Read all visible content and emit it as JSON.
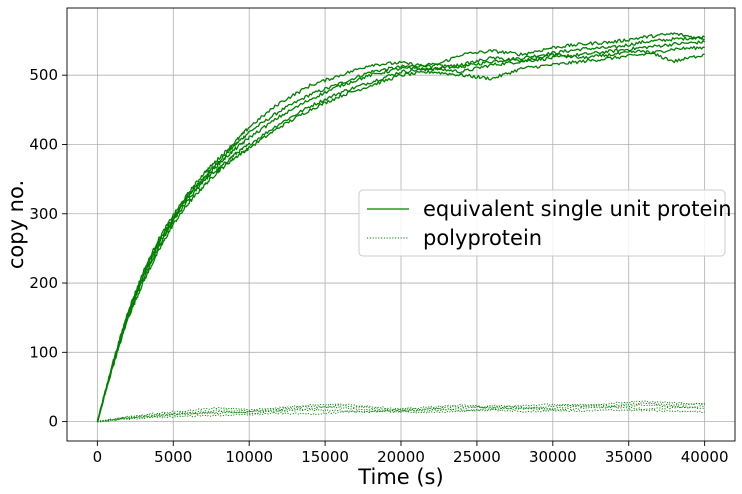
{
  "chart_data": {
    "type": "line",
    "title": "",
    "xlabel": "Time (s)",
    "ylabel": "copy no.",
    "xlim": [
      -2000,
      42000
    ],
    "ylim": [
      -28,
      597
    ],
    "xticks": [
      0,
      5000,
      10000,
      15000,
      20000,
      25000,
      30000,
      35000,
      40000
    ],
    "xtick_labels": [
      "0",
      "5000",
      "10000",
      "15000",
      "20000",
      "25000",
      "30000",
      "35000",
      "40000"
    ],
    "yticks": [
      0,
      100,
      200,
      300,
      400,
      500
    ],
    "ytick_labels": [
      "0",
      "100",
      "200",
      "300",
      "400",
      "500"
    ],
    "grid": true,
    "color": "#008000",
    "legend": {
      "placement": "center-right",
      "entries": [
        {
          "label": "equivalent single unit protein",
          "style": "solid"
        },
        {
          "label": "polyprotein",
          "style": "dotted"
        }
      ]
    },
    "series": [
      {
        "name": "equivalent single unit protein",
        "style": "solid",
        "x": [
          0,
          1000,
          2000,
          3000,
          4000,
          5000,
          6000,
          7000,
          8000,
          9000,
          10000,
          12000,
          14000,
          16000,
          18000,
          20000,
          22000,
          24000,
          26000,
          28000,
          30000,
          32000,
          34000,
          36000,
          38000,
          40000
        ],
        "y": [
          0,
          82,
          155,
          212,
          258,
          294,
          327,
          352,
          376,
          398,
          418,
          448,
          472,
          488,
          505,
          512,
          515,
          512,
          520,
          525,
          532,
          538,
          540,
          548,
          552,
          555
        ]
      },
      {
        "name": "equivalent single unit protein",
        "style": "solid",
        "x": [
          0,
          1000,
          2000,
          3000,
          4000,
          5000,
          6000,
          7000,
          8000,
          9000,
          10000,
          12000,
          14000,
          16000,
          18000,
          20000,
          22000,
          24000,
          26000,
          28000,
          30000,
          32000,
          34000,
          36000,
          38000,
          40000
        ],
        "y": [
          0,
          80,
          150,
          205,
          250,
          290,
          320,
          348,
          365,
          385,
          400,
          430,
          455,
          475,
          490,
          505,
          510,
          505,
          515,
          520,
          525,
          530,
          535,
          540,
          545,
          548
        ]
      },
      {
        "name": "equivalent single unit protein",
        "style": "solid",
        "x": [
          0,
          1000,
          2000,
          3000,
          4000,
          5000,
          6000,
          7000,
          8000,
          9000,
          10000,
          12000,
          14000,
          16000,
          18000,
          20000,
          22000,
          24000,
          26000,
          28000,
          30000,
          32000,
          34000,
          36000,
          38000,
          40000
        ],
        "y": [
          0,
          78,
          148,
          200,
          245,
          285,
          315,
          340,
          362,
          380,
          395,
          425,
          450,
          470,
          485,
          500,
          505,
          500,
          495,
          510,
          515,
          520,
          525,
          530,
          538,
          540
        ]
      },
      {
        "name": "equivalent single unit protein",
        "style": "solid",
        "x": [
          0,
          1000,
          2000,
          3000,
          4000,
          5000,
          6000,
          7000,
          8000,
          9000,
          10000,
          12000,
          14000,
          16000,
          18000,
          20000,
          22000,
          24000,
          26000,
          28000,
          30000,
          32000,
          34000,
          36000,
          38000,
          40000
        ],
        "y": [
          0,
          84,
          158,
          215,
          262,
          298,
          330,
          358,
          380,
          402,
          425,
          460,
          485,
          500,
          515,
          518,
          512,
          530,
          535,
          530,
          540,
          545,
          548,
          555,
          560,
          552
        ]
      },
      {
        "name": "equivalent single unit protein",
        "style": "solid",
        "x": [
          0,
          1000,
          2000,
          3000,
          4000,
          5000,
          6000,
          7000,
          8000,
          9000,
          10000,
          12000,
          14000,
          16000,
          18000,
          20000,
          22000,
          24000,
          26000,
          28000,
          30000,
          32000,
          34000,
          36000,
          38000,
          40000
        ],
        "y": [
          0,
          81,
          152,
          208,
          255,
          292,
          325,
          350,
          372,
          392,
          410,
          440,
          465,
          485,
          500,
          510,
          508,
          515,
          525,
          520,
          530,
          525,
          530,
          535,
          520,
          530
        ]
      },
      {
        "name": "polyprotein",
        "style": "dotted",
        "x": [
          0,
          2000,
          4000,
          6000,
          8000,
          10000,
          12000,
          14000,
          16000,
          18000,
          20000,
          22000,
          24000,
          26000,
          28000,
          30000,
          32000,
          34000,
          36000,
          38000,
          40000
        ],
        "y": [
          0,
          6,
          10,
          13,
          16,
          15,
          18,
          22,
          20,
          17,
          15,
          18,
          22,
          20,
          18,
          22,
          25,
          23,
          27,
          24,
          26
        ]
      },
      {
        "name": "polyprotein",
        "style": "dotted",
        "x": [
          0,
          2000,
          4000,
          6000,
          8000,
          10000,
          12000,
          14000,
          16000,
          18000,
          20000,
          22000,
          24000,
          26000,
          28000,
          30000,
          32000,
          34000,
          36000,
          38000,
          40000
        ],
        "y": [
          0,
          5,
          8,
          11,
          14,
          12,
          15,
          17,
          16,
          14,
          17,
          19,
          16,
          18,
          20,
          17,
          19,
          21,
          18,
          20,
          22
        ]
      },
      {
        "name": "polyprotein",
        "style": "dotted",
        "x": [
          0,
          2000,
          4000,
          6000,
          8000,
          10000,
          12000,
          14000,
          16000,
          18000,
          20000,
          22000,
          24000,
          26000,
          28000,
          30000,
          32000,
          34000,
          36000,
          38000,
          40000
        ],
        "y": [
          0,
          4,
          6,
          8,
          9,
          10,
          12,
          11,
          13,
          15,
          14,
          13,
          15,
          17,
          14,
          16,
          15,
          17,
          16,
          15,
          14
        ]
      },
      {
        "name": "polyprotein",
        "style": "dotted",
        "x": [
          0,
          2000,
          4000,
          6000,
          8000,
          10000,
          12000,
          14000,
          16000,
          18000,
          20000,
          22000,
          24000,
          26000,
          28000,
          30000,
          32000,
          34000,
          36000,
          38000,
          40000
        ],
        "y": [
          0,
          7,
          12,
          16,
          20,
          17,
          20,
          24,
          25,
          22,
          18,
          21,
          24,
          20,
          23,
          25,
          22,
          27,
          29,
          27,
          25
        ]
      },
      {
        "name": "polyprotein",
        "style": "dotted",
        "x": [
          0,
          2000,
          4000,
          6000,
          8000,
          10000,
          12000,
          14000,
          16000,
          18000,
          20000,
          22000,
          24000,
          26000,
          28000,
          30000,
          32000,
          34000,
          36000,
          38000,
          40000
        ],
        "y": [
          0,
          5,
          9,
          12,
          12,
          14,
          16,
          19,
          23,
          20,
          16,
          16,
          19,
          23,
          21,
          19,
          23,
          21,
          24,
          22,
          19
        ]
      }
    ]
  }
}
